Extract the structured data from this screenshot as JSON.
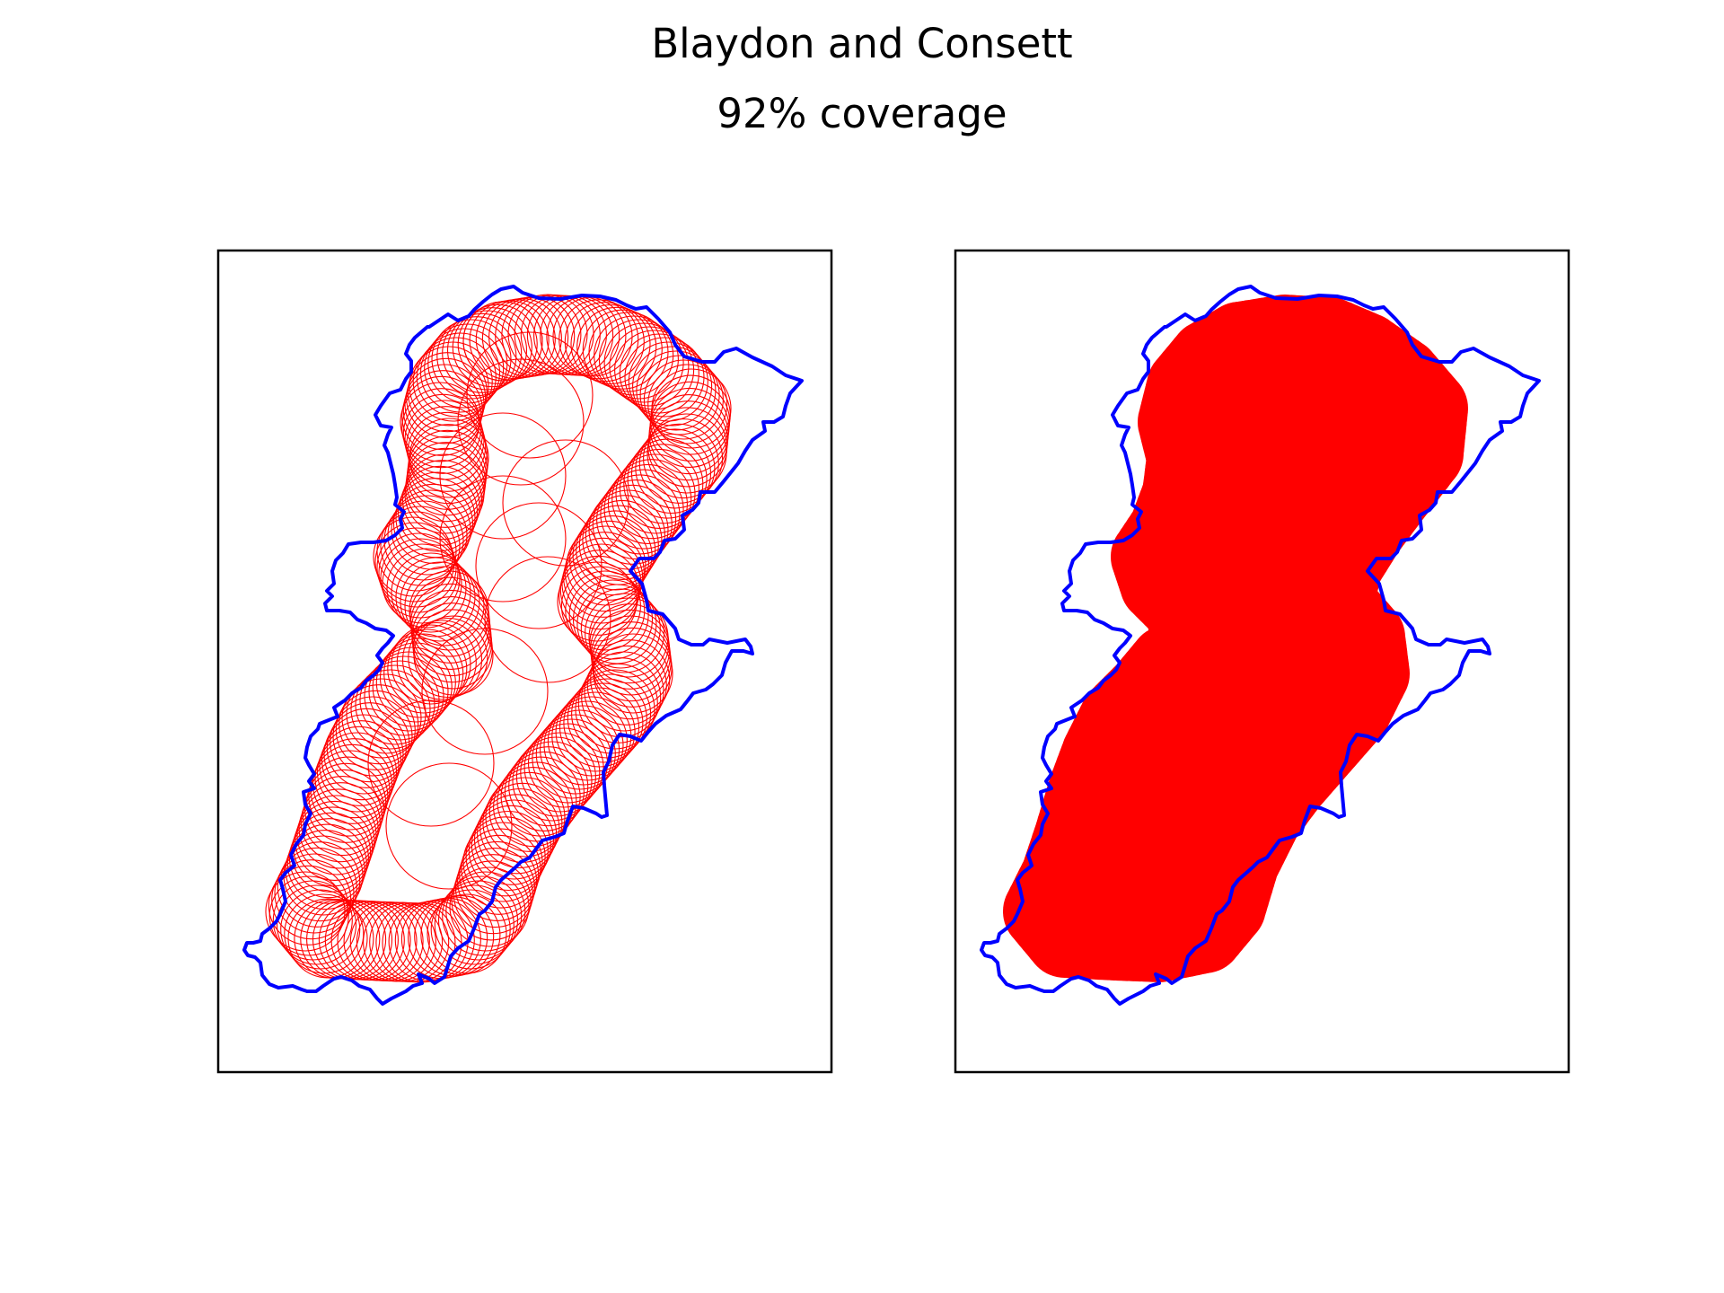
{
  "title": "Blaydon and Consett",
  "subtitle": "92% coverage",
  "colors": {
    "boundary": "#0000ff",
    "coverage": "#ff0000",
    "frame": "#000000"
  },
  "panels": [
    {
      "id": "left",
      "style": "outline-circles"
    },
    {
      "id": "right",
      "style": "filled-coverage"
    }
  ]
}
